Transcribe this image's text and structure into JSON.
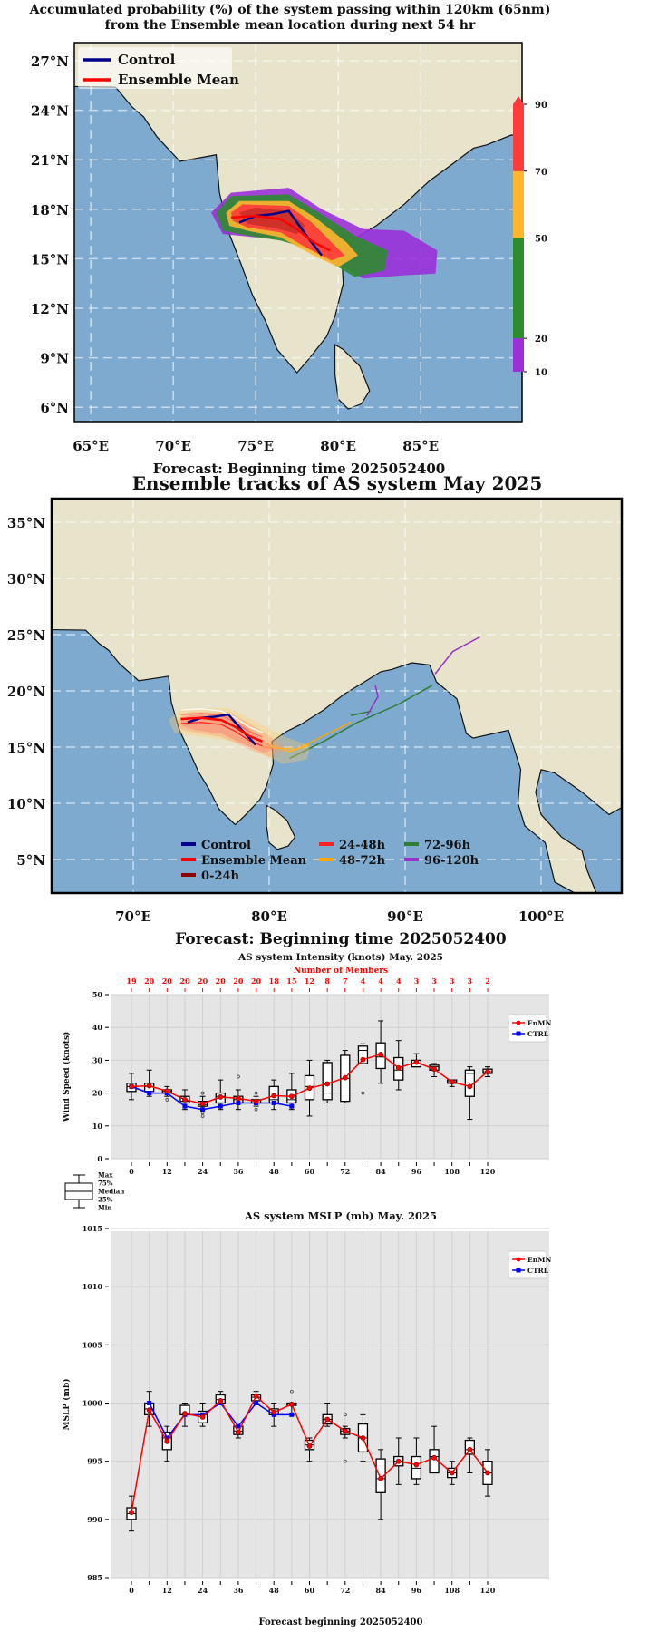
{
  "chart_data": [
    {
      "type": "map",
      "title": "Accumulated probability (%) of the system passing within 120km (65nm)",
      "title_line2": "from the Ensemble mean location during next 54 hr",
      "footer": "Forecast: Beginning time 2025052400",
      "lat_ticks": [
        "27°N",
        "24°N",
        "21°N",
        "18°N",
        "15°N",
        "12°N",
        "9°N",
        "6°N"
      ],
      "lat_values": [
        27,
        24,
        21,
        18,
        15,
        12,
        9,
        6
      ],
      "lon_ticks": [
        "65°E",
        "70°E",
        "75°E",
        "80°E",
        "85°E"
      ],
      "lon_values": [
        65,
        70,
        75,
        80,
        85
      ],
      "legend": [
        {
          "label": "Control",
          "color": "#00008b"
        },
        {
          "label": "Ensemble Mean",
          "color": "#ff0000"
        }
      ],
      "colorbar": {
        "levels": [
          10,
          20,
          50,
          70,
          90
        ],
        "labels": [
          "90",
          "70",
          "50",
          "20",
          "10"
        ],
        "colors": [
          "#9b30d9",
          "#2e8b2e",
          "#ffb52e",
          "#ff3b3b"
        ]
      },
      "control_track": [
        [
          74,
          17.2
        ],
        [
          75,
          17.6
        ],
        [
          76,
          17.7
        ],
        [
          77,
          17.9
        ],
        [
          78,
          16.5
        ],
        [
          79,
          15.2
        ]
      ],
      "mean_track": [
        [
          73.5,
          17.5
        ],
        [
          75,
          17.6
        ],
        [
          76.5,
          17.4
        ],
        [
          77.5,
          16.8
        ],
        [
          78.5,
          16
        ],
        [
          79.5,
          15.5
        ]
      ]
    },
    {
      "type": "map",
      "title": "Ensemble tracks of AS system May 2025",
      "lat_ticks": [
        "35°N",
        "30°N",
        "25°N",
        "20°N",
        "15°N",
        "10°N",
        "5°N"
      ],
      "lat_values": [
        35,
        30,
        25,
        20,
        15,
        10,
        5
      ],
      "lon_ticks": [
        "70°E",
        "80°E",
        "90°E",
        "100°E"
      ],
      "lon_values": [
        70,
        80,
        90,
        100
      ],
      "legend": [
        {
          "label": "Control",
          "color": "#00008b"
        },
        {
          "label": "Ensemble Mean",
          "color": "#ff0000"
        },
        {
          "label": "0-24h",
          "color": "#8b0000"
        },
        {
          "label": "24-48h",
          "color": "#ff2020"
        },
        {
          "label": "48-72h",
          "color": "#ffa500"
        },
        {
          "label": "72-96h",
          "color": "#2e7d32"
        },
        {
          "label": "96-120h",
          "color": "#9932cc"
        }
      ],
      "tracks": [
        {
          "period": "48-72h",
          "points": [
            [
              79.5,
              15
            ],
            [
              82,
              14.8
            ],
            [
              84.5,
              16.3
            ],
            [
              86,
              17.2
            ]
          ]
        },
        {
          "period": "48-72h",
          "points": [
            [
              79.8,
              15.3
            ],
            [
              81.5,
              14.6
            ],
            [
              83,
              15.2
            ]
          ]
        },
        {
          "period": "72-96h",
          "points": [
            [
              81.5,
              14
            ],
            [
              84,
              15.5
            ],
            [
              86.5,
              17.2
            ],
            [
              89.5,
              18.8
            ],
            [
              92,
              20.5
            ]
          ]
        },
        {
          "period": "72-96h",
          "points": [
            [
              86,
              17.8
            ],
            [
              87.5,
              18.2
            ]
          ]
        },
        {
          "period": "96-120h",
          "points": [
            [
              92.2,
              21.5
            ],
            [
              93.5,
              23.5
            ],
            [
              95.5,
              24.8
            ]
          ]
        },
        {
          "period": "96-120h",
          "points": [
            [
              87.2,
              17.8
            ],
            [
              88,
              19.5
            ],
            [
              87.8,
              20.5
            ]
          ]
        }
      ]
    },
    {
      "type": "boxplot-line",
      "suptitle": "Forecast: Beginning time 2025052400",
      "title": "AS system Intensity (knots) May. 2025",
      "top_axis_label": "Number of Members",
      "members": [
        19,
        20,
        20,
        20,
        20,
        20,
        20,
        20,
        18,
        15,
        12,
        8,
        7,
        4,
        4,
        4,
        3,
        3,
        3,
        3,
        2
      ],
      "ylabel": "Wind Speed (knots)",
      "ylim": [
        0,
        50
      ],
      "yticks": [
        0,
        10,
        20,
        30,
        40,
        50
      ],
      "x": [
        0,
        6,
        12,
        18,
        24,
        30,
        36,
        42,
        48,
        54,
        60,
        66,
        72,
        78,
        84,
        90,
        96,
        102,
        108,
        114,
        120
      ],
      "xticks": [
        0,
        12,
        24,
        36,
        48,
        60,
        72,
        84,
        96,
        108,
        120
      ],
      "grid": true,
      "legend_position": "top-right",
      "series": [
        {
          "name": "EnMN",
          "color": "#ff0000",
          "marker": "circle",
          "values": [
            22,
            22.2,
            20.6,
            18,
            16.8,
            18.8,
            18.4,
            17.5,
            19.2,
            19,
            21.5,
            22.8,
            24.7,
            30.2,
            31.8,
            27.7,
            29.4,
            27.3,
            23.4,
            22,
            26.5
          ]
        },
        {
          "name": "CTRL",
          "color": "#0000ff",
          "marker": "square",
          "values": [
            22,
            20,
            20,
            16,
            15,
            16,
            17,
            17,
            17,
            16,
            null,
            null,
            null,
            null,
            null,
            null,
            null,
            null,
            null,
            null,
            null
          ]
        }
      ],
      "boxes": [
        [
          18,
          20.5,
          22,
          23,
          26
        ],
        [
          19,
          20.5,
          22,
          23,
          27
        ],
        [
          19,
          20,
          20.5,
          21,
          22
        ],
        [
          15,
          17,
          17.5,
          19,
          21
        ],
        [
          15,
          16,
          16.5,
          17.5,
          19
        ],
        [
          15,
          17,
          19,
          20,
          24
        ],
        [
          15,
          17,
          18,
          19,
          21
        ],
        [
          16,
          17,
          17,
          18,
          19
        ],
        [
          15,
          17,
          18,
          22,
          24
        ],
        [
          15,
          17,
          18,
          21,
          26
        ],
        [
          13,
          18,
          22,
          25.3,
          30
        ],
        [
          17,
          18,
          20,
          29.3,
          30
        ],
        [
          17,
          17.5,
          24.5,
          31.5,
          33
        ],
        [
          29,
          29,
          33,
          34.3,
          35
        ],
        [
          23,
          27.5,
          31,
          35.3,
          42
        ],
        [
          21,
          24,
          27,
          30.8,
          36
        ],
        [
          28,
          28,
          29,
          30,
          32
        ],
        [
          25,
          27,
          28,
          28.5,
          29
        ],
        [
          22,
          23,
          23.5,
          24,
          24
        ],
        [
          12,
          19,
          26,
          27,
          28
        ],
        [
          25,
          26,
          26.5,
          27.3,
          28
        ]
      ],
      "outliers": [
        [
          12,
          18
        ],
        [
          24,
          20
        ],
        [
          24,
          14
        ],
        [
          24,
          13
        ],
        [
          36,
          25
        ],
        [
          42,
          20
        ],
        [
          42,
          15
        ],
        [
          78,
          20
        ]
      ],
      "box_legend": [
        "Max",
        "75%",
        "Median",
        "25%",
        "Min"
      ]
    },
    {
      "type": "boxplot-line",
      "title": "AS system MSLP (mb) May. 2025",
      "ylabel": "MSLP (mb)",
      "xlabel": "Forecast beginning 2025052400",
      "ylim": [
        985,
        1015
      ],
      "yticks": [
        985,
        990,
        995,
        1000,
        1005,
        1010,
        1015
      ],
      "x": [
        0,
        6,
        12,
        18,
        24,
        30,
        36,
        42,
        48,
        54,
        60,
        66,
        72,
        78,
        84,
        90,
        96,
        102,
        108,
        114,
        120
      ],
      "xticks": [
        0,
        12,
        24,
        36,
        48,
        60,
        72,
        84,
        96,
        108,
        120
      ],
      "grid": true,
      "legend_position": "top-right",
      "series": [
        {
          "name": "EnMN",
          "color": "#ff0000",
          "marker": "circle",
          "values": [
            990.6,
            999.4,
            996.7,
            999.1,
            998.8,
            1000.2,
            997.5,
            1000.6,
            999.2,
            999.9,
            996.3,
            998.6,
            997.6,
            997,
            993.5,
            995,
            994.7,
            995.3,
            994,
            996,
            994
          ]
        },
        {
          "name": "CTRL",
          "color": "#0000ff",
          "marker": "square",
          "values": [
            null,
            1000,
            997,
            999,
            999,
            1000,
            998,
            1000,
            999,
            999,
            null,
            null,
            null,
            null,
            null,
            null,
            null,
            null,
            null,
            null,
            null
          ]
        }
      ],
      "boxes": [
        [
          989,
          990,
          990.5,
          991,
          992
        ],
        [
          998,
          999,
          999.5,
          1000,
          1001
        ],
        [
          995,
          996,
          997,
          997.5,
          998
        ],
        [
          998,
          999,
          999,
          999.8,
          1000
        ],
        [
          998,
          998.3,
          999,
          999.3,
          1000
        ],
        [
          1000,
          1000,
          1000.3,
          1000.7,
          1001
        ],
        [
          997,
          997.3,
          997.6,
          998,
          998
        ],
        [
          1000,
          1000.2,
          1000.5,
          1000.7,
          1001
        ],
        [
          998,
          999,
          999,
          999.5,
          1000
        ],
        [
          999,
          999.8,
          1000,
          1000,
          1000
        ],
        [
          995,
          996,
          996.4,
          996.8,
          997
        ],
        [
          998,
          998.2,
          998.6,
          999,
          1000
        ],
        [
          997,
          997.3,
          997.6,
          997.8,
          998
        ],
        [
          995,
          995.8,
          997,
          998.2,
          999
        ],
        [
          990,
          992.3,
          993.5,
          995.2,
          996
        ],
        [
          993,
          994.6,
          995,
          995.4,
          997
        ],
        [
          993,
          993.5,
          994.4,
          995.4,
          997
        ],
        [
          994,
          994,
          995.4,
          996,
          998
        ],
        [
          993,
          993.6,
          994,
          994.4,
          995
        ],
        [
          994,
          995.6,
          996,
          996.8,
          997
        ],
        [
          992,
          993,
          994,
          995,
          996
        ]
      ],
      "outliers": [
        [
          54,
          1001
        ],
        [
          72,
          999
        ],
        [
          72,
          995
        ]
      ]
    }
  ]
}
